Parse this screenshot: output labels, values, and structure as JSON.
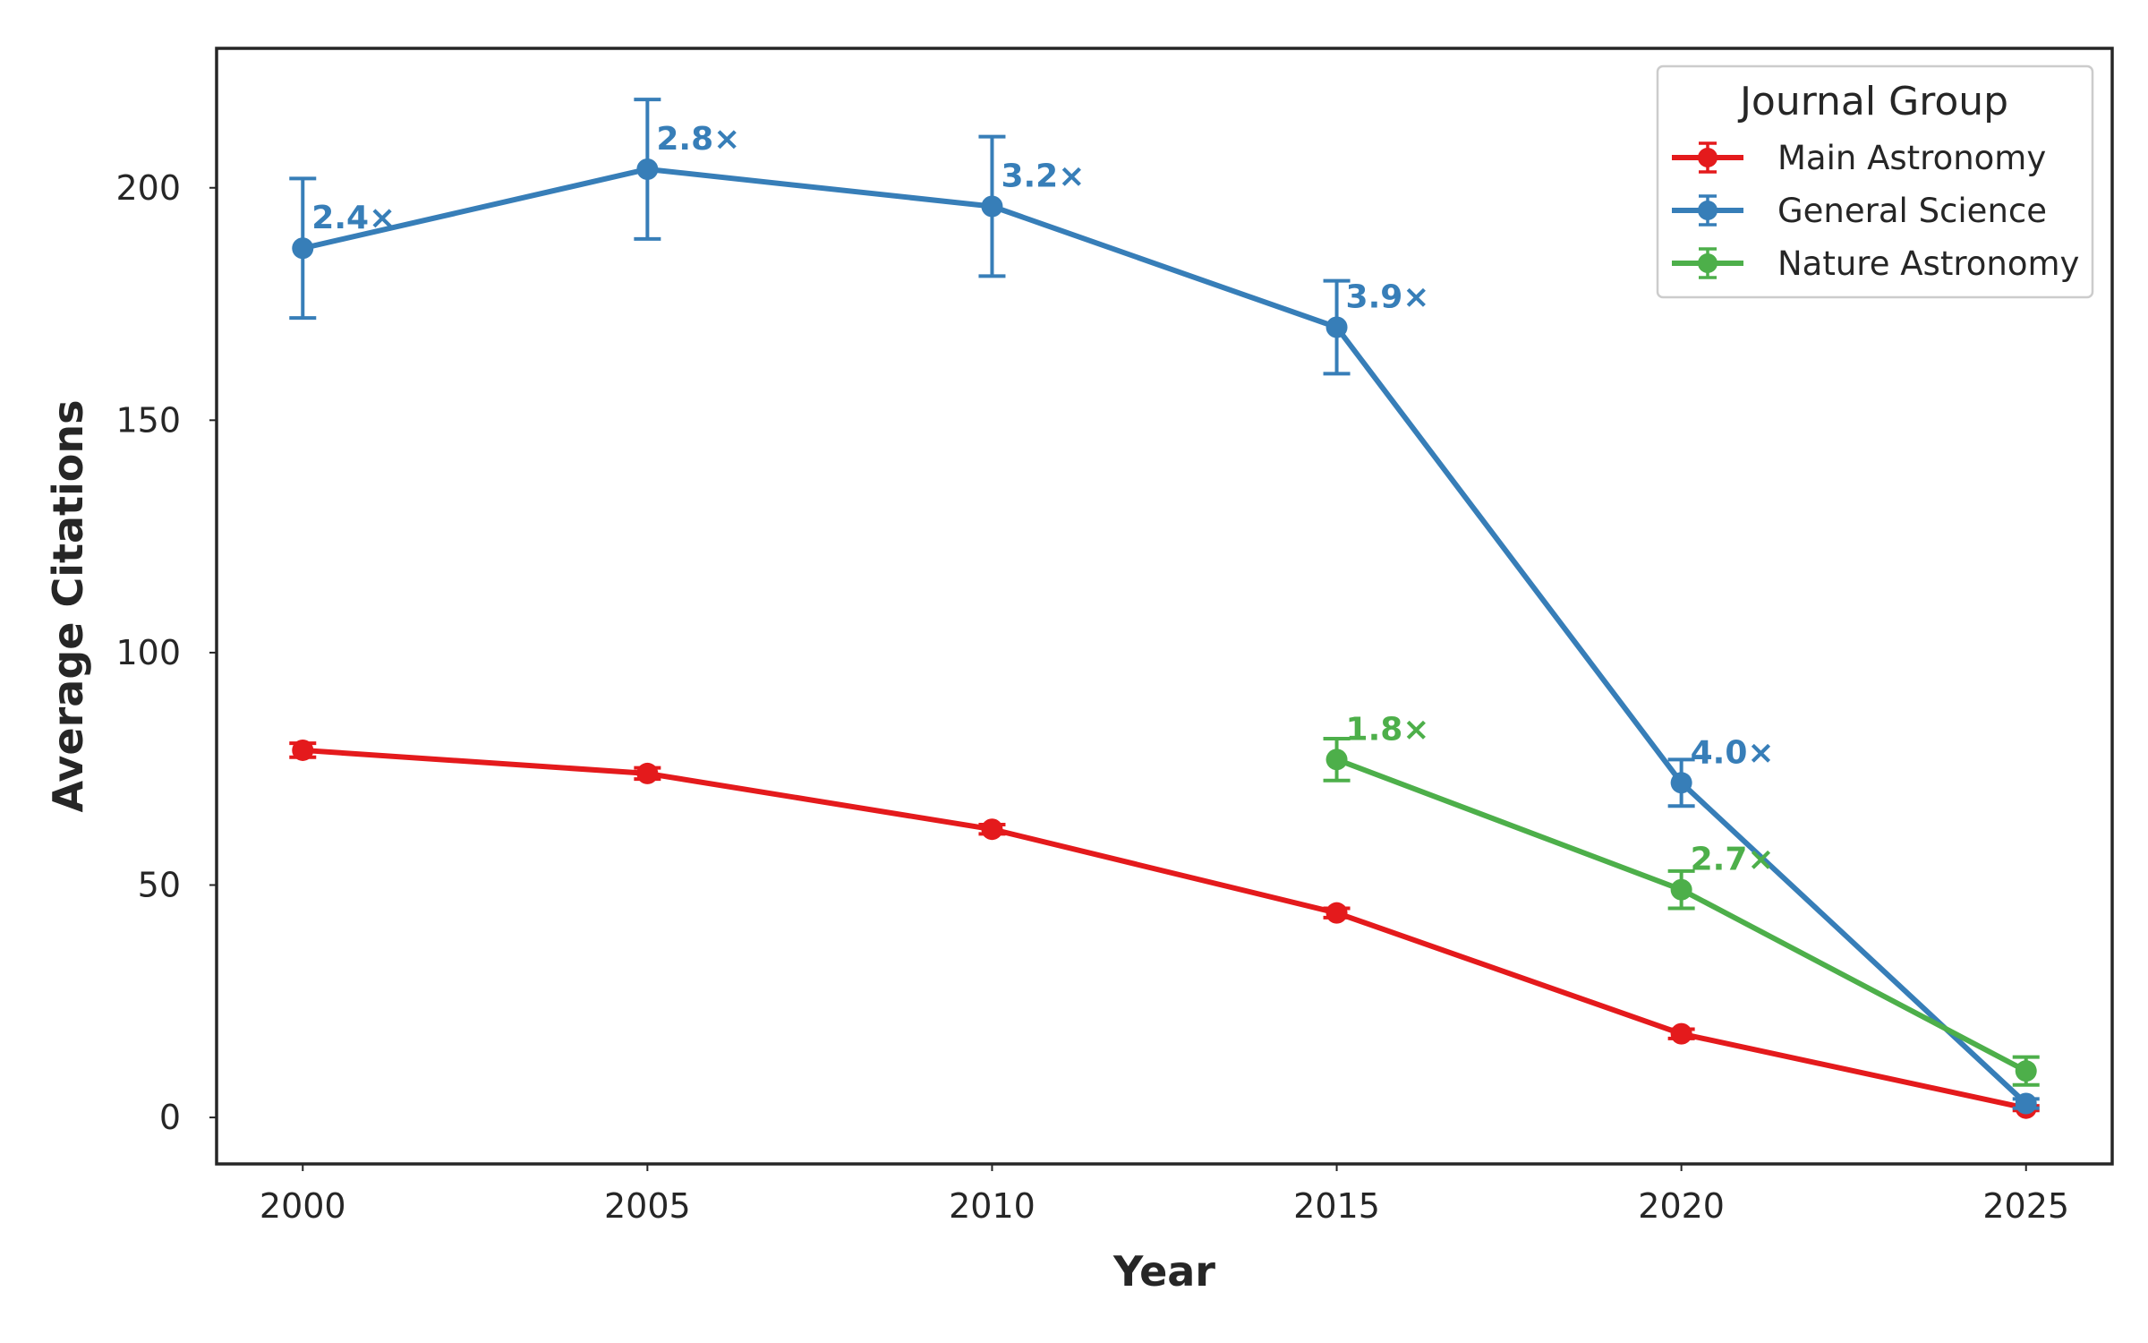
{
  "chart_data": {
    "type": "line",
    "title": "",
    "xlabel": "Year",
    "ylabel": "Average Citations",
    "x": [
      2000,
      2005,
      2010,
      2015,
      2020,
      2025
    ],
    "xlim": [
      1998.75,
      2026.25
    ],
    "ylim": [
      -10,
      230
    ],
    "xticks": [
      "2000",
      "2005",
      "2010",
      "2015",
      "2020",
      "2025"
    ],
    "yticks": [
      0,
      50,
      100,
      150,
      200
    ],
    "grid": false,
    "legend": {
      "title": "Journal Group",
      "placement": "top-right"
    },
    "series": [
      {
        "name": "Main Astronomy",
        "color": "#e41a1c",
        "x": [
          2000,
          2005,
          2010,
          2015,
          2020,
          2025
        ],
        "values": [
          79,
          74,
          62,
          44,
          18,
          2
        ],
        "error": [
          1.5,
          1.2,
          1.0,
          1.0,
          1.0,
          0.5
        ],
        "labels": [
          "",
          "",
          "",
          "",
          "",
          ""
        ]
      },
      {
        "name": "General Science",
        "color": "#377eb8",
        "x": [
          2000,
          2005,
          2010,
          2015,
          2020,
          2025
        ],
        "values": [
          187,
          204,
          196,
          170,
          72,
          3
        ],
        "error": [
          15,
          15,
          15,
          10,
          5,
          1
        ],
        "labels": [
          "2.4×",
          "2.8×",
          "3.2×",
          "3.9×",
          "4.0×",
          ""
        ]
      },
      {
        "name": "Nature Astronomy",
        "color": "#4daf4a",
        "x": [
          2015,
          2020,
          2025
        ],
        "values": [
          77,
          49,
          10
        ],
        "error": [
          4.5,
          4,
          3
        ],
        "labels": [
          "1.8×",
          "2.7×",
          ""
        ]
      }
    ]
  }
}
